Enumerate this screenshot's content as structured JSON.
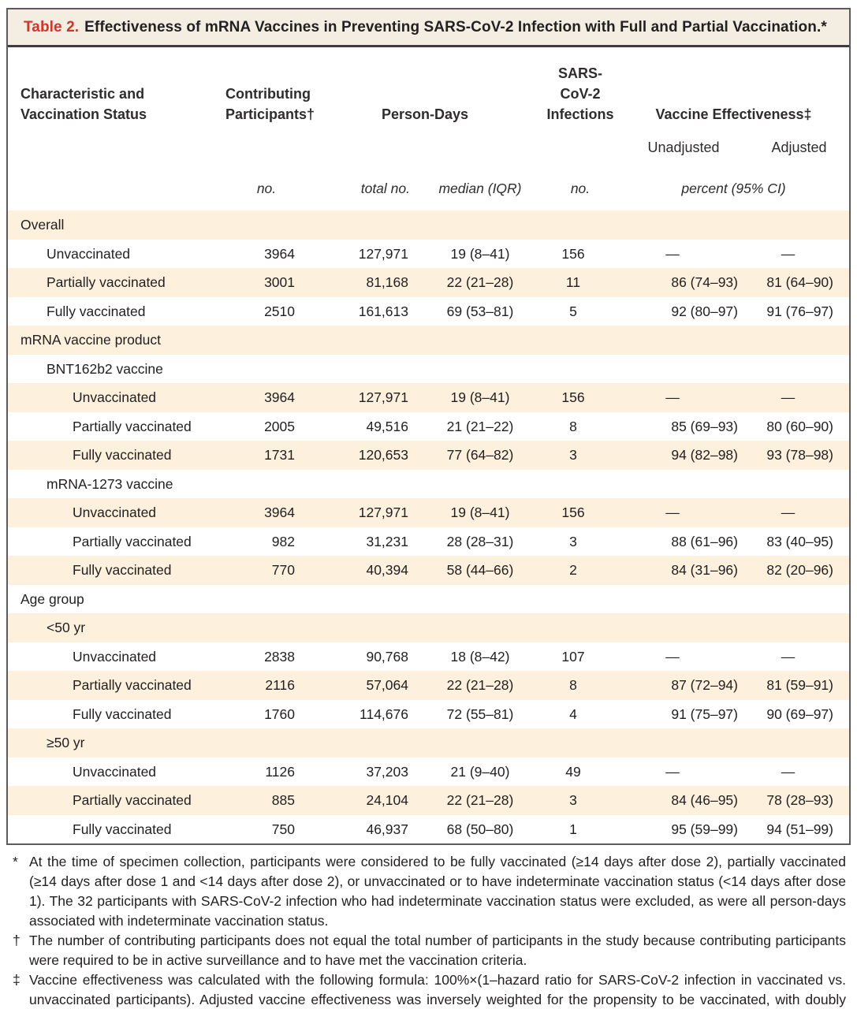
{
  "table": {
    "title_label": "Table 2.",
    "title_text": "Effectiveness of mRNA Vaccines in Preventing SARS-CoV-2 Infection with Full and Partial Vaccination.*",
    "header": {
      "characteristic": [
        "Characteristic and",
        "Vaccination Status"
      ],
      "contributing": [
        "Contributing",
        "Participants†"
      ],
      "person_days": "Person-Days",
      "infections": [
        "SARS-CoV-2",
        "Infections"
      ],
      "vaccine_effectiveness": "Vaccine Effectiveness‡",
      "unadjusted": "Unadjusted",
      "adjusted": "Adjusted",
      "units": {
        "no1": "no.",
        "total_no": "total no.",
        "median_iqr": "median (IQR)",
        "no2": "no.",
        "percent_ci": "percent (95% CI)"
      }
    },
    "rows": [
      {
        "label": "Overall",
        "indent": 0,
        "section": true,
        "cells": [
          "",
          "",
          "",
          "",
          "",
          ""
        ]
      },
      {
        "label": "Unvaccinated",
        "indent": 1,
        "section": false,
        "cells": [
          "3964",
          "127,971",
          "19 (8–41)",
          "156",
          "—",
          "—"
        ]
      },
      {
        "label": "Partially vaccinated",
        "indent": 1,
        "section": false,
        "cells": [
          "3001",
          "81,168",
          "22 (21–28)",
          "11",
          "86 (74–93)",
          "81 (64–90)"
        ]
      },
      {
        "label": "Fully vaccinated",
        "indent": 1,
        "section": false,
        "cells": [
          "2510",
          "161,613",
          "69 (53–81)",
          "5",
          "92 (80–97)",
          "91 (76–97)"
        ]
      },
      {
        "label": "mRNA vaccine product",
        "indent": 0,
        "section": true,
        "cells": [
          "",
          "",
          "",
          "",
          "",
          ""
        ]
      },
      {
        "label": "BNT162b2 vaccine",
        "indent": 1,
        "section": true,
        "cells": [
          "",
          "",
          "",
          "",
          "",
          ""
        ]
      },
      {
        "label": "Unvaccinated",
        "indent": 2,
        "section": false,
        "cells": [
          "3964",
          "127,971",
          "19 (8–41)",
          "156",
          "—",
          "—"
        ]
      },
      {
        "label": "Partially vaccinated",
        "indent": 2,
        "section": false,
        "cells": [
          "2005",
          "49,516",
          "21 (21–22)",
          "8",
          "85 (69–93)",
          "80 (60–90)"
        ]
      },
      {
        "label": "Fully vaccinated",
        "indent": 2,
        "section": false,
        "cells": [
          "1731",
          "120,653",
          "77 (64–82)",
          "3",
          "94 (82–98)",
          "93 (78–98)"
        ]
      },
      {
        "label": "mRNA-1273 vaccine",
        "indent": 1,
        "section": true,
        "cells": [
          "",
          "",
          "",
          "",
          "",
          ""
        ]
      },
      {
        "label": "Unvaccinated",
        "indent": 2,
        "section": false,
        "cells": [
          "3964",
          "127,971",
          "19 (8–41)",
          "156",
          "—",
          "—"
        ]
      },
      {
        "label": "Partially vaccinated",
        "indent": 2,
        "section": false,
        "cells": [
          "982",
          "31,231",
          "28 (28–31)",
          "3",
          "88 (61–96)",
          "83 (40–95)"
        ]
      },
      {
        "label": "Fully vaccinated",
        "indent": 2,
        "section": false,
        "cells": [
          "770",
          "40,394",
          "58 (44–66)",
          "2",
          "84 (31–96)",
          "82 (20–96)"
        ]
      },
      {
        "label": "Age group",
        "indent": 0,
        "section": true,
        "cells": [
          "",
          "",
          "",
          "",
          "",
          ""
        ]
      },
      {
        "label": "<50 yr",
        "indent": 1,
        "section": true,
        "cells": [
          "",
          "",
          "",
          "",
          "",
          ""
        ]
      },
      {
        "label": "Unvaccinated",
        "indent": 2,
        "section": false,
        "cells": [
          "2838",
          "90,768",
          "18 (8–42)",
          "107",
          "—",
          "—"
        ]
      },
      {
        "label": "Partially vaccinated",
        "indent": 2,
        "section": false,
        "cells": [
          "2116",
          "57,064",
          "22 (21–28)",
          "8",
          "87 (72–94)",
          "81 (59–91)"
        ]
      },
      {
        "label": "Fully vaccinated",
        "indent": 2,
        "section": false,
        "cells": [
          "1760",
          "114,676",
          "72 (55–81)",
          "4",
          "91 (75–97)",
          "90 (69–97)"
        ]
      },
      {
        "label": "≥50 yr",
        "indent": 1,
        "section": true,
        "cells": [
          "",
          "",
          "",
          "",
          "",
          ""
        ]
      },
      {
        "label": "Unvaccinated",
        "indent": 2,
        "section": false,
        "cells": [
          "1126",
          "37,203",
          "21 (9–40)",
          "49",
          "—",
          "—"
        ]
      },
      {
        "label": "Partially vaccinated",
        "indent": 2,
        "section": false,
        "cells": [
          "885",
          "24,104",
          "22 (21–28)",
          "3",
          "84 (46–95)",
          "78 (28–93)"
        ]
      },
      {
        "label": "Fully vaccinated",
        "indent": 2,
        "section": false,
        "cells": [
          "750",
          "46,937",
          "68 (50–80)",
          "1",
          "95 (59–99)",
          "94 (51–99)"
        ]
      }
    ],
    "footnotes": [
      {
        "symbol": "*",
        "text": "At the time of specimen collection, participants were considered to be fully vaccinated (≥14 days after dose 2), partially vaccinated (≥14 days after dose 1 and <14 days after dose 2), or unvaccinated or to have indeterminate vaccination status (<14 days after dose 1). The 32 participants with SARS-CoV-2 infection who had indeterminate vaccination status were excluded, as were all person-days associated with indeterminate vaccination status."
      },
      {
        "symbol": "†",
        "text": "The number of contributing participants does not equal the total number of participants in the study because contributing participants were required to be in active surveillance and to have met the vaccination criteria."
      },
      {
        "symbol": "‡",
        "text": "Vaccine effectiveness was calculated with the following formula: 100%×(1–hazard ratio for SARS-CoV-2 infection in vaccinated vs. unvaccinated participants). Adjusted vaccine effectiveness was inversely weighted for the propensity to be vaccinated, with doubly robust adjustment for local viral circulation, site, and occupation."
      }
    ],
    "colors": {
      "accent_red": "#d23428",
      "stripe_cream": "#fdf1de",
      "title_bar_bg": "#f4eee2",
      "border_gray": "#5b5b5d",
      "rule_dark": "#3d3d3f"
    }
  }
}
